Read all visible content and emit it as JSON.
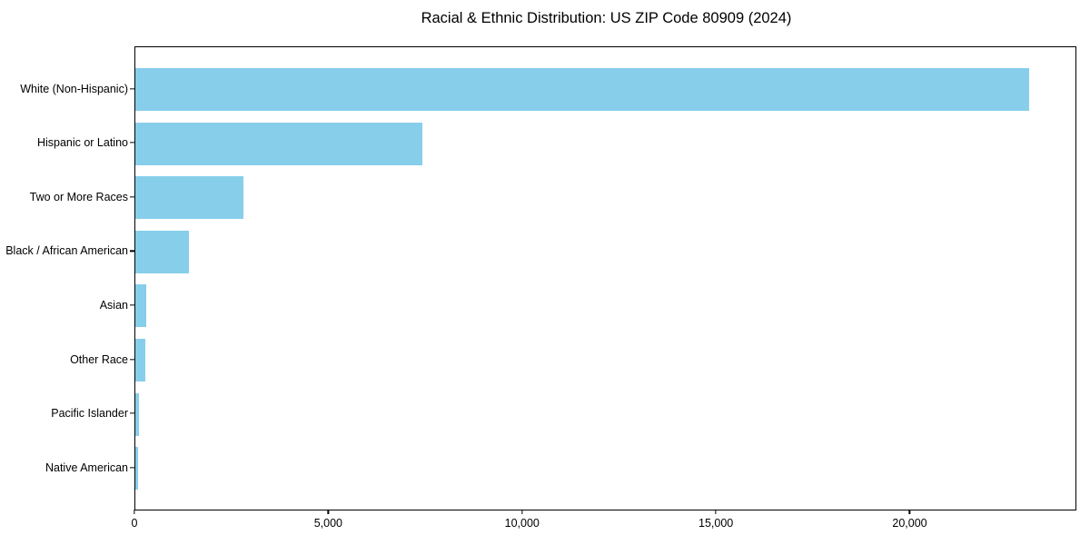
{
  "chart_data": {
    "type": "bar",
    "orientation": "horizontal",
    "title": "Racial & Ethnic Distribution: US ZIP Code 80909 (2024)",
    "categories": [
      "White (Non-Hispanic)",
      "Hispanic or Latino",
      "Two or More Races",
      "Black / African American",
      "Asian",
      "Other Race",
      "Pacific Islander",
      "Native American"
    ],
    "values": [
      23100,
      7420,
      2790,
      1385,
      285,
      260,
      95,
      65
    ],
    "xlabel": "",
    "ylabel": "",
    "xlim": [
      0,
      24300
    ],
    "x_ticks": [
      0,
      5000,
      10000,
      15000,
      20000
    ],
    "x_tick_labels": [
      "0",
      "5,000",
      "10,000",
      "15,000",
      "20,000"
    ],
    "bar_color": "#87CEEB",
    "spine_color": "#000000",
    "text_color": "#000000",
    "background_color": "#ffffff",
    "grid": false,
    "legend": false
  }
}
